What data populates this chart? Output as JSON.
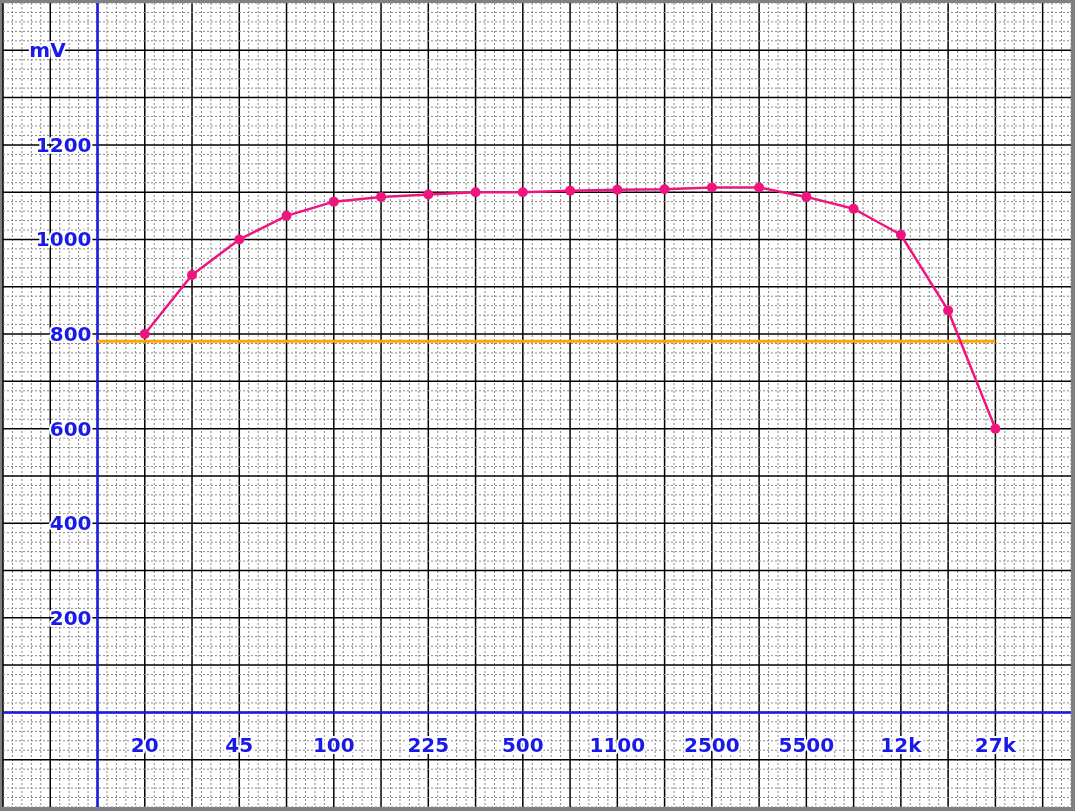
{
  "chart_data": {
    "type": "line",
    "ylabel": "mV",
    "categories": [
      "20",
      null,
      "45",
      null,
      "100",
      null,
      "225",
      null,
      "500",
      null,
      "1100",
      null,
      "2500",
      null,
      "5500",
      null,
      "12k",
      null,
      "27k"
    ],
    "series": [
      {
        "color": "#f0147f",
        "values": [
          800,
          925,
          1000,
          1050,
          1080,
          1090,
          1095,
          1100,
          1100,
          1103,
          1105,
          1106,
          1110,
          1110,
          1090,
          1065,
          1010,
          850,
          600
        ]
      }
    ],
    "ylim": [
      -200,
      1500
    ],
    "yticks": [
      {
        "value": -100,
        "label": null
      },
      {
        "value": 0,
        "label": null
      },
      {
        "value": 100,
        "label": null
      },
      200,
      {
        "value": 300,
        "label": null
      },
      400,
      {
        "value": 500,
        "label": null
      },
      600,
      {
        "value": 700,
        "label": null
      },
      800,
      {
        "value": 900,
        "label": null
      },
      1000,
      {
        "value": 1100,
        "label": null
      },
      1200,
      {
        "value": 1300,
        "label": null
      },
      {
        "value": 1400,
        "label": null
      }
    ],
    "ref_lines": [
      {
        "axis": "y",
        "value": 785,
        "color": "#ffa500"
      }
    ],
    "grid": true,
    "marker": "circle",
    "line_style": "solid"
  }
}
